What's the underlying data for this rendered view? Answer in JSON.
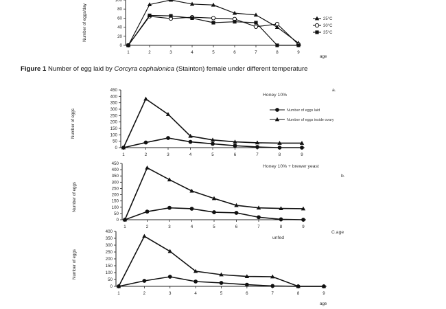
{
  "caption": {
    "figure_label": "Figure 1",
    "text_before": " Number of egg laid by ",
    "species": "Corcyra cephalonica",
    "text_after": " (Stainton) female under different temperature"
  },
  "chart_data": [
    {
      "type": "line",
      "title": "",
      "ylabel": "Number of eggs/day",
      "xlabel": "age",
      "categories": [
        "1",
        "2",
        "3",
        "4",
        "5",
        "6",
        "7",
        "8",
        "9"
      ],
      "y_ticks": [
        "0",
        "20",
        "40",
        "60",
        "80",
        "100"
      ],
      "ylim": [
        0,
        100
      ],
      "legend_position": "right",
      "series": [
        {
          "name": "25°C",
          "marker": "triangle",
          "values": [
            0,
            90,
            100,
            91,
            89,
            71,
            67,
            40,
            5
          ]
        },
        {
          "name": "30°C",
          "marker": "circle-open",
          "values": [
            0,
            64,
            59,
            62,
            60,
            58,
            41,
            47,
            2
          ]
        },
        {
          "name": "35°C",
          "marker": "square",
          "values": [
            0,
            66,
            65,
            60,
            50,
            52,
            50,
            0,
            0
          ]
        }
      ]
    },
    {
      "type": "line",
      "panel_label": "a.",
      "annotation": "Honey 10%",
      "ylabel": "Number of eggs",
      "xlabel": "",
      "categories": [
        "1",
        "2",
        "3",
        "4",
        "5",
        "6",
        "7",
        "8",
        "9"
      ],
      "y_ticks": [
        "0",
        "50",
        "100",
        "150",
        "200",
        "250",
        "300",
        "350",
        "400",
        "450"
      ],
      "ylim": [
        0,
        450
      ],
      "legend_position": "right",
      "series": [
        {
          "name": "Number of eggs laid",
          "marker": "circle",
          "values": [
            0,
            40,
            75,
            45,
            30,
            15,
            5,
            0,
            0
          ]
        },
        {
          "name": "Number of eggs inside ovary",
          "marker": "triangle",
          "values": [
            0,
            380,
            260,
            90,
            60,
            45,
            38,
            35,
            35
          ]
        }
      ]
    },
    {
      "type": "line",
      "panel_label": "b.",
      "annotation": "Honey 10% + brewer yeast",
      "ylabel": "Number of eggs",
      "xlabel": "",
      "categories": [
        "1",
        "2",
        "3",
        "4",
        "5",
        "6",
        "7",
        "8",
        "9"
      ],
      "y_ticks": [
        "0",
        "50",
        "100",
        "150",
        "200",
        "250",
        "300",
        "350",
        "400",
        "450"
      ],
      "ylim": [
        0,
        450
      ],
      "series": [
        {
          "name": "Number of eggs laid",
          "marker": "circle",
          "values": [
            0,
            65,
            95,
            88,
            60,
            55,
            20,
            3,
            0
          ]
        },
        {
          "name": "Number of eggs inside ovary",
          "marker": "triangle",
          "values": [
            0,
            415,
            320,
            230,
            170,
            115,
            95,
            90,
            88
          ]
        }
      ]
    },
    {
      "type": "line",
      "panel_label": "C.age",
      "annotation": "unfed",
      "ylabel": "Number of eggs",
      "xlabel": "age",
      "categories": [
        "1",
        "2",
        "3",
        "4",
        "5",
        "6",
        "7",
        "8",
        "9"
      ],
      "y_ticks": [
        "0",
        "50",
        "100",
        "150",
        "200",
        "250",
        "300",
        "350",
        "400"
      ],
      "ylim": [
        0,
        400
      ],
      "series": [
        {
          "name": "Number of eggs laid",
          "marker": "circle",
          "values": [
            0,
            40,
            70,
            35,
            25,
            12,
            3,
            0,
            0
          ]
        },
        {
          "name": "Number of eggs inside ovary",
          "marker": "triangle",
          "values": [
            0,
            365,
            255,
            110,
            85,
            72,
            70,
            0,
            0
          ]
        }
      ]
    }
  ]
}
